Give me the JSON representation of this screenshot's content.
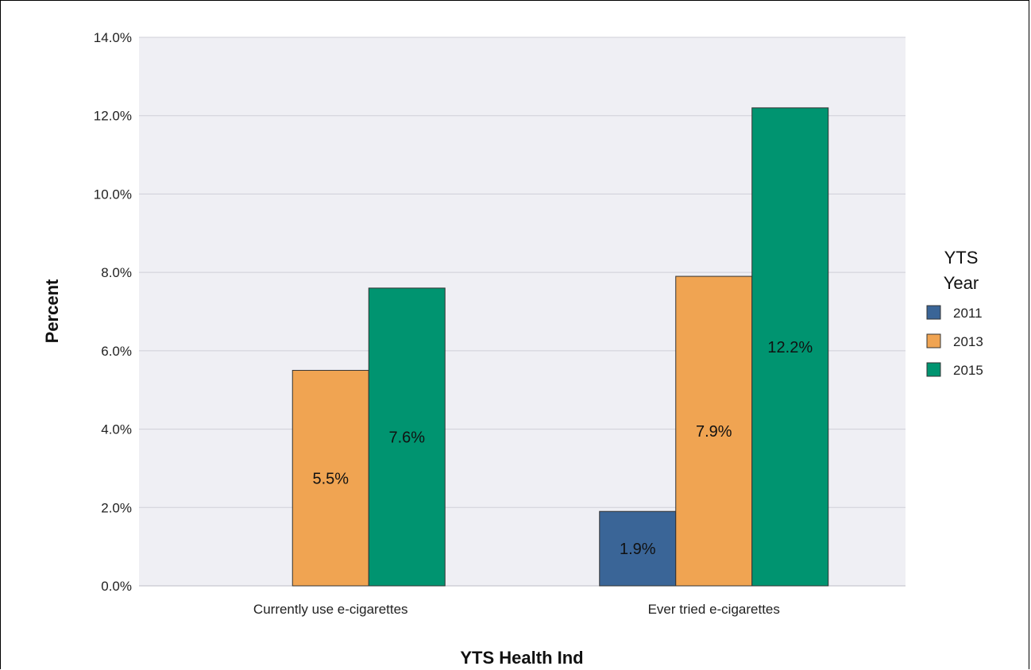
{
  "chart_data": {
    "type": "bar",
    "categories": [
      "Currently use e-cigarettes",
      "Ever tried e-cigarettes"
    ],
    "series": [
      {
        "name": "2011",
        "color": "#3a6597",
        "values": [
          null,
          1.9
        ]
      },
      {
        "name": "2013",
        "color": "#f0a452",
        "values": [
          5.5,
          7.9
        ]
      },
      {
        "name": "2015",
        "color": "#009470",
        "values": [
          7.6,
          12.2
        ]
      }
    ],
    "data_labels": [
      [
        "",
        "1.9%"
      ],
      [
        "5.5%",
        "7.9%"
      ],
      [
        "7.6%",
        "12.2%"
      ]
    ],
    "title": "",
    "xlabel": "YTS Health Ind",
    "ylabel": "Percent",
    "ylim": [
      0,
      14
    ],
    "yticks": [
      "0.0%",
      "2.0%",
      "4.0%",
      "6.0%",
      "8.0%",
      "10.0%",
      "12.0%",
      "14.0%"
    ],
    "grid": true,
    "legend": {
      "title_line1": "YTS",
      "title_line2": "Year",
      "position": "right"
    }
  }
}
